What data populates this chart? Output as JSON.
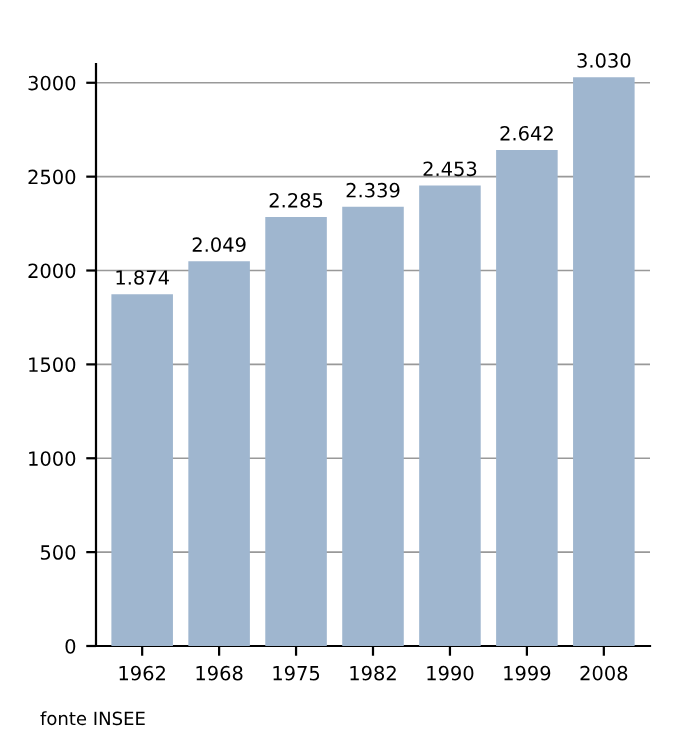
{
  "chart_data": {
    "type": "bar",
    "categories": [
      "1962",
      "1968",
      "1975",
      "1982",
      "1990",
      "1999",
      "2008"
    ],
    "values": [
      1874,
      2049,
      2285,
      2339,
      2453,
      2642,
      3030
    ],
    "value_labels": [
      "1.874",
      "2.049",
      "2.285",
      "2.339",
      "2.453",
      "2.642",
      "3.030"
    ],
    "color": "#9fb6cf",
    "ylim": [
      0,
      3100
    ],
    "yticks": [
      0,
      500,
      1000,
      1500,
      2000,
      2500,
      3000
    ],
    "grid": "y",
    "annotations": [
      "fonte INSEE"
    ]
  }
}
